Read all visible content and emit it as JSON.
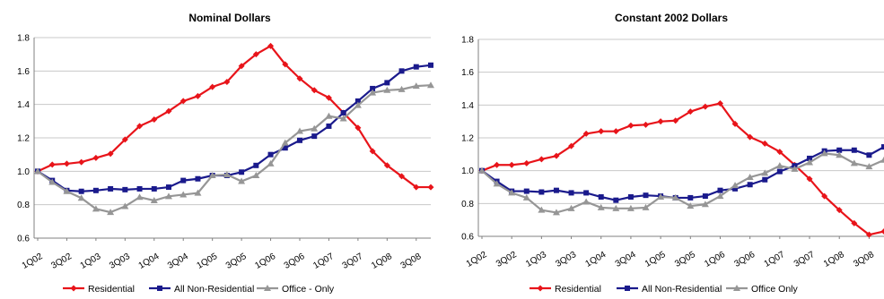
{
  "chart_data": [
    {
      "type": "line",
      "title": "Nominal Dollars",
      "xlabel": "",
      "ylabel": "",
      "ylim": [
        0.6,
        1.8
      ],
      "yticks": [
        "0.6",
        "0.8",
        "1.0",
        "1.2",
        "1.4",
        "1.6",
        "1.8"
      ],
      "x": [
        "1Q02",
        "2Q02",
        "3Q02",
        "4Q02",
        "1Q03",
        "2Q03",
        "3Q03",
        "4Q03",
        "1Q04",
        "2Q04",
        "3Q04",
        "4Q04",
        "1Q05",
        "2Q05",
        "3Q05",
        "4Q05",
        "1Q06",
        "2Q06",
        "3Q06",
        "4Q06",
        "1Q07",
        "2Q07",
        "3Q07",
        "4Q07",
        "1Q08",
        "2Q08",
        "3Q08",
        "4Q08"
      ],
      "xtick_labels": [
        "1Q02",
        "3Q02",
        "1Q03",
        "3Q03",
        "1Q04",
        "3Q04",
        "1Q05",
        "3Q05",
        "1Q06",
        "3Q06",
        "1Q07",
        "3Q07",
        "1Q08",
        "3Q08"
      ],
      "grid": "horizontal",
      "legend_position": "bottom",
      "series": [
        {
          "name": "Residential",
          "color": "#e8141a",
          "marker": "diamond",
          "values": [
            1.0,
            1.04,
            1.045,
            1.055,
            1.08,
            1.105,
            1.19,
            1.27,
            1.31,
            1.36,
            1.42,
            1.45,
            1.505,
            1.535,
            1.63,
            1.7,
            1.75,
            1.64,
            1.555,
            1.485,
            1.44,
            1.35,
            1.26,
            1.12,
            1.035,
            0.97,
            0.905,
            0.905
          ]
        },
        {
          "name": "All Non-Residential",
          "color": "#1a1a8c",
          "marker": "square",
          "values": [
            1.0,
            0.945,
            0.885,
            0.88,
            0.885,
            0.895,
            0.89,
            0.895,
            0.895,
            0.905,
            0.945,
            0.955,
            0.975,
            0.975,
            0.995,
            1.035,
            1.1,
            1.14,
            1.185,
            1.21,
            1.27,
            1.35,
            1.42,
            1.495,
            1.53,
            1.6,
            1.625,
            1.635
          ]
        },
        {
          "name": "Office - Only",
          "color": "#969696",
          "marker": "triangle",
          "values": [
            1.0,
            0.935,
            0.88,
            0.84,
            0.775,
            0.755,
            0.79,
            0.845,
            0.825,
            0.85,
            0.86,
            0.87,
            0.975,
            0.98,
            0.94,
            0.975,
            1.045,
            1.17,
            1.24,
            1.255,
            1.33,
            1.315,
            1.395,
            1.47,
            1.485,
            1.49,
            1.51,
            1.515
          ]
        }
      ]
    },
    {
      "type": "line",
      "title": "Constant 2002 Dollars",
      "xlabel": "",
      "ylabel": "",
      "ylim": [
        0.6,
        1.8
      ],
      "yticks": [
        "0.6",
        "0.8",
        "1.0",
        "1.2",
        "1.4",
        "1.6",
        "1.8"
      ],
      "x": [
        "1Q02",
        "2Q02",
        "3Q02",
        "4Q02",
        "1Q03",
        "2Q03",
        "3Q03",
        "4Q03",
        "1Q04",
        "2Q04",
        "3Q04",
        "4Q04",
        "1Q05",
        "2Q05",
        "3Q05",
        "4Q05",
        "1Q06",
        "2Q06",
        "3Q06",
        "4Q06",
        "1Q07",
        "2Q07",
        "3Q07",
        "4Q07",
        "1Q08",
        "2Q08",
        "3Q08",
        "4Q08"
      ],
      "xtick_labels": [
        "1Q02",
        "3Q02",
        "1Q03",
        "3Q03",
        "1Q04",
        "3Q04",
        "1Q05",
        "3Q05",
        "1Q06",
        "3Q06",
        "1Q07",
        "3Q07",
        "1Q08",
        "3Q08"
      ],
      "grid": "horizontal",
      "legend_position": "bottom",
      "series": [
        {
          "name": "Residential",
          "color": "#e8141a",
          "marker": "diamond",
          "values": [
            1.0,
            1.035,
            1.035,
            1.045,
            1.07,
            1.09,
            1.15,
            1.225,
            1.24,
            1.24,
            1.275,
            1.28,
            1.3,
            1.305,
            1.36,
            1.39,
            1.41,
            1.285,
            1.205,
            1.165,
            1.115,
            1.035,
            0.95,
            0.845,
            0.76,
            0.68,
            0.61,
            0.63
          ]
        },
        {
          "name": "All Non-Residential",
          "color": "#1a1a8c",
          "marker": "square",
          "values": [
            1.0,
            0.935,
            0.875,
            0.875,
            0.87,
            0.88,
            0.865,
            0.865,
            0.84,
            0.82,
            0.84,
            0.85,
            0.845,
            0.835,
            0.835,
            0.845,
            0.88,
            0.89,
            0.915,
            0.945,
            0.995,
            1.03,
            1.075,
            1.12,
            1.125,
            1.125,
            1.095,
            1.145
          ]
        },
        {
          "name": "Office Only",
          "color": "#969696",
          "marker": "triangle",
          "values": [
            1.0,
            0.92,
            0.865,
            0.835,
            0.76,
            0.745,
            0.77,
            0.81,
            0.775,
            0.77,
            0.77,
            0.775,
            0.84,
            0.835,
            0.785,
            0.795,
            0.845,
            0.91,
            0.96,
            0.985,
            1.03,
            1.01,
            1.05,
            1.105,
            1.095,
            1.045,
            1.025,
            1.065
          ]
        }
      ]
    }
  ]
}
